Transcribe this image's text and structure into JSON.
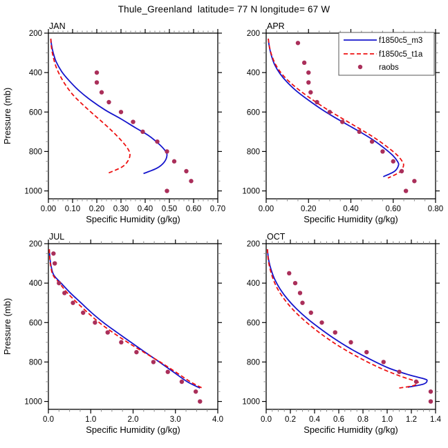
{
  "title": "Thule_Greenland  latitude= 77 N longitude= 67 W",
  "legend": {
    "position": "top-right-apr-panel",
    "entries": [
      {
        "label": "f1850c5_m3",
        "type": "line",
        "style": "solid",
        "color": "#1414cc"
      },
      {
        "label": "f1850c5_t1a",
        "type": "line",
        "style": "dashed",
        "color": "#ee1111"
      },
      {
        "label": "raobs",
        "type": "marker",
        "style": "dot",
        "color": "#aa2f5a"
      }
    ]
  },
  "chart_data": [
    {
      "id": "jan",
      "type": "line",
      "title": "JAN",
      "xlabel": "Specific Humidity (g/kg)",
      "ylabel": "Pressure (mb)",
      "xlim": [
        0.0,
        0.7
      ],
      "ylim": [
        200,
        1040
      ],
      "y_inverted": true,
      "xminor": 0.02,
      "yminor": 50,
      "legend": false,
      "xticks": {
        "values": [
          0.0,
          0.1,
          0.2,
          0.3,
          0.4,
          0.5,
          0.6,
          0.7
        ],
        "labels": [
          "0.00",
          "0.10",
          "0.20",
          "0.30",
          "0.40",
          "0.50",
          "0.60",
          "0.70"
        ]
      },
      "yticks": {
        "values": [
          200,
          400,
          600,
          800,
          1000
        ],
        "labels": [
          "200",
          "400",
          "600",
          "800",
          "1000"
        ]
      },
      "series": [
        {
          "name": "f1850c5_m3",
          "style": "solid",
          "color": "#1414cc",
          "points": [
            [
              0.01,
              228
            ],
            [
              0.013,
              260
            ],
            [
              0.02,
              300
            ],
            [
              0.032,
              345
            ],
            [
              0.055,
              395
            ],
            [
              0.085,
              440
            ],
            [
              0.125,
              490
            ],
            [
              0.175,
              540
            ],
            [
              0.235,
              590
            ],
            [
              0.3,
              635
            ],
            [
              0.36,
              680
            ],
            [
              0.415,
              720
            ],
            [
              0.455,
              760
            ],
            [
              0.482,
              795
            ],
            [
              0.49,
              820
            ],
            [
              0.478,
              855
            ],
            [
              0.448,
              885
            ],
            [
              0.393,
              912
            ]
          ]
        },
        {
          "name": "f1850c5_t1a",
          "style": "dashed",
          "color": "#ee1111",
          "points": [
            [
              0.01,
              228
            ],
            [
              0.012,
              265
            ],
            [
              0.018,
              310
            ],
            [
              0.03,
              365
            ],
            [
              0.048,
              415
            ],
            [
              0.072,
              465
            ],
            [
              0.103,
              515
            ],
            [
              0.14,
              560
            ],
            [
              0.18,
              605
            ],
            [
              0.222,
              650
            ],
            [
              0.262,
              695
            ],
            [
              0.298,
              740
            ],
            [
              0.325,
              780
            ],
            [
              0.337,
              812
            ],
            [
              0.33,
              845
            ],
            [
              0.305,
              878
            ],
            [
              0.243,
              912
            ]
          ]
        },
        {
          "name": "raobs",
          "style": "markers",
          "color": "#aa2f5a",
          "points": [
            [
              0.2,
              400
            ],
            [
              0.2,
              450
            ],
            [
              0.22,
              500
            ],
            [
              0.25,
              550
            ],
            [
              0.3,
              600
            ],
            [
              0.35,
              650
            ],
            [
              0.39,
              700
            ],
            [
              0.45,
              750
            ],
            [
              0.49,
              800
            ],
            [
              0.52,
              850
            ],
            [
              0.57,
              900
            ],
            [
              0.59,
              950
            ],
            [
              0.49,
              1000
            ]
          ]
        }
      ]
    },
    {
      "id": "apr",
      "type": "line",
      "title": "APR",
      "xlabel": "Specific Humidity (g/kg)",
      "ylabel": "",
      "xlim": [
        0.0,
        0.8
      ],
      "ylim": [
        200,
        1040
      ],
      "y_inverted": true,
      "xminor": 0.05,
      "yminor": 50,
      "legend": true,
      "xticks": {
        "values": [
          0.0,
          0.2,
          0.4,
          0.6,
          0.8
        ],
        "labels": [
          "0.00",
          "0.20",
          "0.40",
          "0.60",
          "0.80"
        ]
      },
      "yticks": {
        "values": [
          200,
          400,
          600,
          800,
          1000
        ],
        "labels": [
          "200",
          "400",
          "600",
          "800",
          "1000"
        ]
      },
      "series": [
        {
          "name": "f1850c5_m3",
          "style": "solid",
          "color": "#1414cc",
          "points": [
            [
              0.01,
              228
            ],
            [
              0.015,
              270
            ],
            [
              0.025,
              315
            ],
            [
              0.04,
              360
            ],
            [
              0.065,
              405
            ],
            [
              0.1,
              450
            ],
            [
              0.145,
              495
            ],
            [
              0.2,
              540
            ],
            [
              0.26,
              585
            ],
            [
              0.32,
              625
            ],
            [
              0.385,
              665
            ],
            [
              0.45,
              705
            ],
            [
              0.51,
              745
            ],
            [
              0.56,
              785
            ],
            [
              0.598,
              820
            ],
            [
              0.62,
              850
            ],
            [
              0.625,
              870
            ],
            [
              0.607,
              900
            ],
            [
              0.553,
              928
            ]
          ]
        },
        {
          "name": "f1850c5_t1a",
          "style": "dashed",
          "color": "#ee1111",
          "points": [
            [
              0.01,
              228
            ],
            [
              0.016,
              272
            ],
            [
              0.028,
              318
            ],
            [
              0.046,
              362
            ],
            [
              0.075,
              408
            ],
            [
              0.115,
              452
            ],
            [
              0.165,
              496
            ],
            [
              0.222,
              540
            ],
            [
              0.285,
              585
            ],
            [
              0.35,
              627
            ],
            [
              0.415,
              668
            ],
            [
              0.478,
              708
            ],
            [
              0.535,
              748
            ],
            [
              0.585,
              788
            ],
            [
              0.622,
              822
            ],
            [
              0.645,
              855
            ],
            [
              0.648,
              875
            ],
            [
              0.63,
              905
            ],
            [
              0.575,
              935
            ]
          ]
        },
        {
          "name": "raobs",
          "style": "markers",
          "color": "#aa2f5a",
          "points": [
            [
              0.15,
              250
            ],
            [
              0.18,
              350
            ],
            [
              0.2,
              400
            ],
            [
              0.2,
              450
            ],
            [
              0.21,
              500
            ],
            [
              0.24,
              550
            ],
            [
              0.3,
              600
            ],
            [
              0.36,
              650
            ],
            [
              0.44,
              700
            ],
            [
              0.5,
              750
            ],
            [
              0.55,
              800
            ],
            [
              0.6,
              850
            ],
            [
              0.64,
              900
            ],
            [
              0.7,
              950
            ],
            [
              0.66,
              1000
            ]
          ]
        }
      ]
    },
    {
      "id": "jul",
      "type": "line",
      "title": "JUL",
      "xlabel": "Specific Humidity (g/kg)",
      "ylabel": "Pressure (mb)",
      "xlim": [
        0.0,
        4.0
      ],
      "ylim": [
        200,
        1040
      ],
      "y_inverted": true,
      "xminor": 0.25,
      "yminor": 50,
      "legend": false,
      "xticks": {
        "values": [
          0.0,
          1.0,
          2.0,
          3.0,
          4.0
        ],
        "labels": [
          "0.0",
          "1.0",
          "2.0",
          "3.0",
          "4.0"
        ]
      },
      "yticks": {
        "values": [
          200,
          400,
          600,
          800,
          1000
        ],
        "labels": [
          "200",
          "400",
          "600",
          "800",
          "1000"
        ]
      },
      "series": [
        {
          "name": "f1850c5_m3",
          "style": "solid",
          "color": "#1414cc",
          "points": [
            [
              0.02,
              228
            ],
            [
              0.04,
              280
            ],
            [
              0.07,
              320
            ],
            [
              0.13,
              360
            ],
            [
              0.3,
              400
            ],
            [
              0.52,
              450
            ],
            [
              0.77,
              500
            ],
            [
              1.02,
              550
            ],
            [
              1.3,
              600
            ],
            [
              1.62,
              650
            ],
            [
              1.95,
              700
            ],
            [
              2.28,
              750
            ],
            [
              2.62,
              800
            ],
            [
              2.95,
              850
            ],
            [
              3.28,
              900
            ],
            [
              3.58,
              932
            ]
          ]
        },
        {
          "name": "f1850c5_t1a",
          "style": "dashed",
          "color": "#ee1111",
          "points": [
            [
              0.02,
              228
            ],
            [
              0.035,
              280
            ],
            [
              0.06,
              320
            ],
            [
              0.11,
              360
            ],
            [
              0.26,
              400
            ],
            [
              0.45,
              450
            ],
            [
              0.68,
              500
            ],
            [
              0.93,
              550
            ],
            [
              1.2,
              600
            ],
            [
              1.52,
              650
            ],
            [
              1.87,
              700
            ],
            [
              2.25,
              750
            ],
            [
              2.64,
              800
            ],
            [
              3.0,
              850
            ],
            [
              3.35,
              900
            ],
            [
              3.65,
              934
            ]
          ]
        },
        {
          "name": "raobs",
          "style": "markers",
          "color": "#aa2f5a",
          "points": [
            [
              0.12,
              250
            ],
            [
              0.15,
              300
            ],
            [
              0.25,
              400
            ],
            [
              0.38,
              450
            ],
            [
              0.58,
              500
            ],
            [
              0.82,
              550
            ],
            [
              1.1,
              600
            ],
            [
              1.4,
              650
            ],
            [
              1.72,
              700
            ],
            [
              2.08,
              750
            ],
            [
              2.48,
              800
            ],
            [
              2.82,
              850
            ],
            [
              3.15,
              900
            ],
            [
              3.48,
              950
            ],
            [
              3.58,
              1000
            ]
          ]
        }
      ]
    },
    {
      "id": "oct",
      "type": "line",
      "title": "OCT",
      "xlabel": "Specific Humidity (g/kg)",
      "ylabel": "",
      "xlim": [
        0.0,
        1.4
      ],
      "ylim": [
        200,
        1040
      ],
      "y_inverted": true,
      "xminor": 0.05,
      "yminor": 50,
      "legend": false,
      "xticks": {
        "values": [
          0.0,
          0.2,
          0.4,
          0.6,
          0.8,
          1.0,
          1.2,
          1.4
        ],
        "labels": [
          "0.0",
          "0.2",
          "0.4",
          "0.6",
          "0.8",
          "1.0",
          "1.2",
          "1.4"
        ]
      },
      "yticks": {
        "values": [
          200,
          400,
          600,
          800,
          1000
        ],
        "labels": [
          "200",
          "400",
          "600",
          "800",
          "1000"
        ]
      },
      "series": [
        {
          "name": "f1850c5_m3",
          "style": "solid",
          "color": "#1414cc",
          "points": [
            [
              0.01,
              228
            ],
            [
              0.02,
              280
            ],
            [
              0.04,
              330
            ],
            [
              0.07,
              380
            ],
            [
              0.115,
              430
            ],
            [
              0.175,
              480
            ],
            [
              0.25,
              530
            ],
            [
              0.34,
              580
            ],
            [
              0.445,
              630
            ],
            [
              0.56,
              680
            ],
            [
              0.69,
              730
            ],
            [
              0.84,
              780
            ],
            [
              1.01,
              830
            ],
            [
              1.18,
              865
            ],
            [
              1.305,
              885
            ],
            [
              1.33,
              895
            ],
            [
              1.3,
              912
            ],
            [
              1.17,
              928
            ]
          ]
        },
        {
          "name": "f1850c5_t1a",
          "style": "dashed",
          "color": "#ee1111",
          "points": [
            [
              0.01,
              228
            ],
            [
              0.017,
              280
            ],
            [
              0.033,
              330
            ],
            [
              0.058,
              380
            ],
            [
              0.095,
              430
            ],
            [
              0.148,
              480
            ],
            [
              0.215,
              530
            ],
            [
              0.298,
              580
            ],
            [
              0.395,
              630
            ],
            [
              0.505,
              680
            ],
            [
              0.63,
              730
            ],
            [
              0.775,
              780
            ],
            [
              0.94,
              830
            ],
            [
              1.11,
              872
            ],
            [
              1.235,
              897
            ],
            [
              1.255,
              905
            ],
            [
              1.215,
              920
            ],
            [
              1.09,
              933
            ]
          ]
        },
        {
          "name": "raobs",
          "style": "markers",
          "color": "#aa2f5a",
          "points": [
            [
              0.19,
              350
            ],
            [
              0.24,
              400
            ],
            [
              0.28,
              450
            ],
            [
              0.3,
              500
            ],
            [
              0.37,
              550
            ],
            [
              0.46,
              600
            ],
            [
              0.57,
              650
            ],
            [
              0.7,
              700
            ],
            [
              0.83,
              750
            ],
            [
              0.97,
              800
            ],
            [
              1.1,
              850
            ],
            [
              1.24,
              900
            ],
            [
              1.36,
              950
            ],
            [
              1.36,
              1000
            ]
          ]
        }
      ]
    }
  ]
}
